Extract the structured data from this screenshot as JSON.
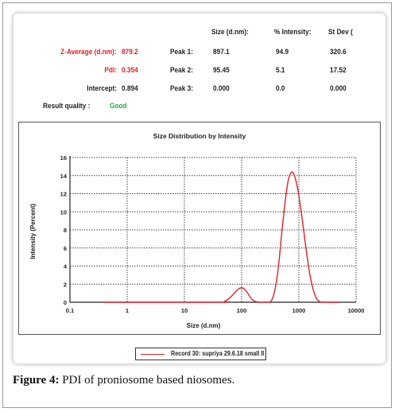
{
  "header": {
    "col_size": "Size (d.nm):",
    "col_intensity": "% Intensity:",
    "col_stdev": "St Dev (",
    "z_average_label": "Z-Average (d.nm):",
    "z_average_value": "879.2",
    "pdi_label": "PdI:",
    "pdi_value": "0.354",
    "intercept_label": "Intercept:",
    "intercept_value": "0.894",
    "quality_label": "Result quality :",
    "quality_value": "Good",
    "peaks": [
      {
        "label": "Peak 1:",
        "size": "897.1",
        "intensity": "94.9",
        "stdev": "320.6"
      },
      {
        "label": "Peak 2:",
        "size": "95.45",
        "intensity": "5.1",
        "stdev": "17.52"
      },
      {
        "label": "Peak 3:",
        "size": "0.000",
        "intensity": "0.0",
        "stdev": "0.000"
      }
    ]
  },
  "colors": {
    "curve": "#e0202a",
    "label_red": "#e0202a",
    "good_green": "#1fae3a",
    "grid": "#444444"
  },
  "chart_data": {
    "type": "line",
    "title": "Size Distribution by Intensity",
    "xlabel": "Size (d.nm)",
    "ylabel": "Intensity (Percent)",
    "xscale": "log",
    "xlim": [
      0.1,
      10000
    ],
    "ylim": [
      0,
      16
    ],
    "xticks": [
      "0.1",
      "1",
      "10",
      "100",
      "1000",
      "10000"
    ],
    "yticks": [
      "0",
      "2",
      "4",
      "6",
      "8",
      "10",
      "12",
      "14",
      "16"
    ],
    "grid": true,
    "legend_position": "bottom-center",
    "series": [
      {
        "name": "Record 30: supriya 29.6.18 small II",
        "x": [
          0.4,
          40,
          50,
          60,
          70,
          80,
          90,
          100,
          110,
          125,
          140,
          160,
          200,
          300,
          350,
          400,
          450,
          500,
          550,
          600,
          650,
          700,
          750,
          800,
          850,
          900,
          950,
          1000,
          1100,
          1200,
          1300,
          1400,
          1500,
          1600,
          1800,
          2000,
          2200,
          2500,
          3000,
          5000
        ],
        "y": [
          0,
          0,
          0.1,
          0.4,
          0.8,
          1.2,
          1.5,
          1.6,
          1.5,
          1.1,
          0.6,
          0.2,
          0,
          0,
          0.5,
          2.0,
          4.5,
          7.5,
          10.0,
          12.0,
          13.4,
          14.1,
          14.4,
          14.3,
          13.9,
          13.3,
          12.6,
          11.8,
          10.0,
          8.2,
          6.5,
          5.0,
          3.7,
          2.7,
          1.3,
          0.5,
          0.15,
          0,
          0,
          0
        ]
      }
    ]
  }
}
